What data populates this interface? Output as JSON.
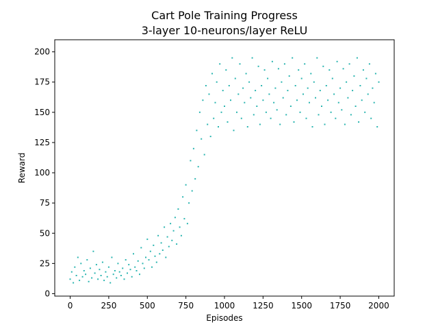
{
  "chart_data": {
    "type": "scatter",
    "title": "Cart Pole Training Progress",
    "subtitle": "3-layer 10-neurons/layer ReLU",
    "xlabel": "Episodes",
    "ylabel": "Reward",
    "xlim": [
      -100,
      2100
    ],
    "ylim": [
      -2,
      210
    ],
    "xticks": [
      0,
      250,
      500,
      750,
      1000,
      1250,
      1500,
      1750,
      2000
    ],
    "yticks": [
      0,
      25,
      50,
      75,
      100,
      125,
      150,
      175,
      200
    ],
    "grid": false,
    "legend": "none",
    "marker_color": "#2ab5b0",
    "series": [
      {
        "points_note": "",
        "x": [
          0,
          10,
          20,
          30,
          40,
          50,
          60,
          70,
          80,
          90,
          100,
          110,
          120,
          130,
          140,
          150,
          160,
          170,
          180,
          190,
          200,
          210,
          220,
          230,
          240,
          250,
          260,
          270,
          280,
          290,
          300,
          310,
          320,
          330,
          340,
          350,
          360,
          370,
          380,
          390,
          400,
          410,
          420,
          430,
          440,
          450,
          460,
          470,
          480,
          490,
          500,
          510,
          520,
          530,
          540,
          550,
          560,
          570,
          580,
          590,
          600,
          610,
          620,
          630,
          640,
          650,
          660,
          670,
          680,
          690,
          700,
          710,
          720,
          730,
          740,
          750,
          760,
          770,
          780,
          790,
          800,
          810,
          820,
          830,
          840,
          850,
          860,
          870,
          880,
          890,
          900,
          910,
          920,
          930,
          940,
          950,
          960,
          970,
          980,
          990,
          1000,
          1010,
          1020,
          1030,
          1040,
          1050,
          1060,
          1070,
          1080,
          1090,
          1100,
          1110,
          1120,
          1130,
          1140,
          1150,
          1160,
          1170,
          1180,
          1190,
          1200,
          1210,
          1220,
          1230,
          1240,
          1250,
          1260,
          1270,
          1280,
          1290,
          1300,
          1310,
          1320,
          1330,
          1340,
          1350,
          1360,
          1370,
          1380,
          1390,
          1400,
          1410,
          1420,
          1430,
          1440,
          1450,
          1460,
          1470,
          1480,
          1490,
          1500,
          1510,
          1520,
          1530,
          1540,
          1550,
          1560,
          1570,
          1580,
          1590,
          1600,
          1610,
          1620,
          1630,
          1640,
          1650,
          1660,
          1670,
          1680,
          1690,
          1700,
          1710,
          1720,
          1730,
          1740,
          1750,
          1760,
          1770,
          1780,
          1790,
          1800,
          1810,
          1820,
          1830,
          1840,
          1850,
          1860,
          1870,
          1880,
          1890,
          1900,
          1910,
          1920,
          1930,
          1940,
          1950,
          1960,
          1970,
          1980,
          1990,
          2000
        ],
        "y": [
          12,
          18,
          9,
          22,
          15,
          30,
          11,
          25,
          14,
          19,
          16,
          28,
          10,
          21,
          13,
          35,
          17,
          24,
          12,
          20,
          15,
          26,
          11,
          18,
          14,
          22,
          9,
          30,
          16,
          19,
          13,
          25,
          18,
          15,
          21,
          12,
          28,
          17,
          24,
          20,
          14,
          33,
          22,
          19,
          27,
          16,
          38,
          25,
          21,
          30,
          45,
          28,
          35,
          22,
          40,
          31,
          26,
          48,
          33,
          42,
          36,
          55,
          30,
          47,
          39,
          58,
          44,
          52,
          63,
          41,
          70,
          55,
          48,
          80,
          62,
          90,
          58,
          75,
          110,
          85,
          120,
          95,
          135,
          105,
          150,
          128,
          160,
          115,
          172,
          140,
          165,
          130,
          182,
          145,
          158,
          175,
          138,
          190,
          150,
          168,
          155,
          185,
          142,
          172,
          160,
          195,
          135,
          178,
          150,
          165,
          190,
          145,
          170,
          158,
          182,
          138,
          175,
          162,
          195,
          148,
          168,
          155,
          188,
          140,
          172,
          160,
          185,
          150,
          178,
          165,
          145,
          192,
          158,
          170,
          152,
          186,
          140,
          175,
          162,
          190,
          148,
          168,
          180,
          155,
          195,
          142,
          172,
          160,
          185,
          150,
          178,
          165,
          190,
          145,
          170,
          158,
          182,
          138,
          175,
          162,
          195,
          148,
          168,
          155,
          188,
          140,
          172,
          160,
          185,
          150,
          178,
          165,
          145,
          192,
          158,
          170,
          152,
          186,
          140,
          175,
          162,
          190,
          148,
          168,
          180,
          155,
          195,
          142,
          172,
          160,
          185,
          150,
          178,
          165,
          190,
          145,
          170,
          158,
          182,
          138,
          175
        ]
      }
    ]
  }
}
